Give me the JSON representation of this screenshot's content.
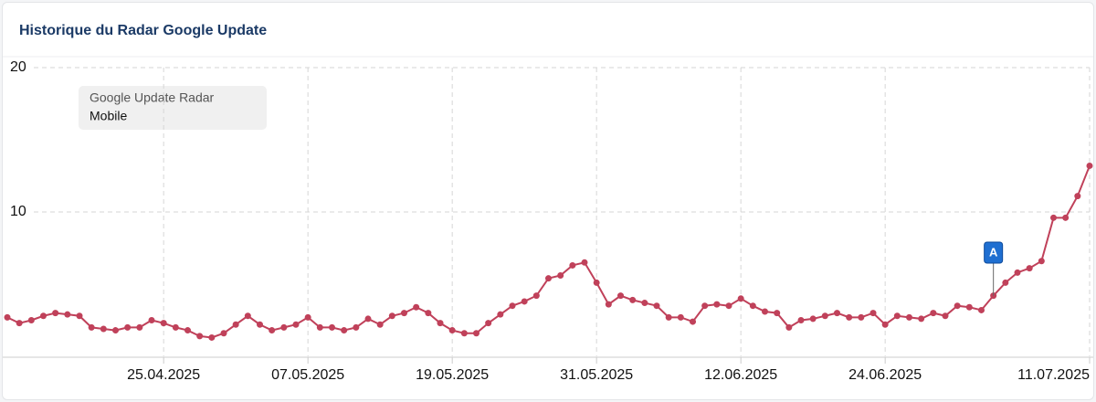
{
  "chart_data": {
    "type": "line",
    "title": "Historique du Radar Google Update",
    "legend_title": "Google Update Radar",
    "x": [
      "12.04.2025",
      "13.04.2025",
      "14.04.2025",
      "15.04.2025",
      "16.04.2025",
      "17.04.2025",
      "18.04.2025",
      "19.04.2025",
      "20.04.2025",
      "21.04.2025",
      "22.04.2025",
      "23.04.2025",
      "24.04.2025",
      "25.04.2025",
      "26.04.2025",
      "27.04.2025",
      "28.04.2025",
      "29.04.2025",
      "30.04.2025",
      "01.05.2025",
      "02.05.2025",
      "03.05.2025",
      "04.05.2025",
      "05.05.2025",
      "06.05.2025",
      "07.05.2025",
      "08.05.2025",
      "09.05.2025",
      "10.05.2025",
      "11.05.2025",
      "12.05.2025",
      "13.05.2025",
      "14.05.2025",
      "15.05.2025",
      "16.05.2025",
      "17.05.2025",
      "18.05.2025",
      "19.05.2025",
      "20.05.2025",
      "21.05.2025",
      "22.05.2025",
      "23.05.2025",
      "24.05.2025",
      "25.05.2025",
      "26.05.2025",
      "27.05.2025",
      "28.05.2025",
      "29.05.2025",
      "30.05.2025",
      "31.05.2025",
      "01.06.2025",
      "02.06.2025",
      "03.06.2025",
      "04.06.2025",
      "05.06.2025",
      "06.06.2025",
      "07.06.2025",
      "08.06.2025",
      "09.06.2025",
      "10.06.2025",
      "11.06.2025",
      "12.06.2025",
      "13.06.2025",
      "14.06.2025",
      "15.06.2025",
      "16.06.2025",
      "17.06.2025",
      "18.06.2025",
      "19.06.2025",
      "20.06.2025",
      "21.06.2025",
      "22.06.2025",
      "23.06.2025",
      "24.06.2025",
      "25.06.2025",
      "26.06.2025",
      "27.06.2025",
      "28.06.2025",
      "29.06.2025",
      "30.06.2025",
      "01.07.2025",
      "02.07.2025",
      "03.07.2025",
      "04.07.2025",
      "05.07.2025",
      "06.07.2025",
      "07.07.2025",
      "08.07.2025",
      "09.07.2025",
      "10.07.2025",
      "11.07.2025"
    ],
    "series": [
      {
        "name": "Mobile",
        "color": "#c0415a",
        "values": [
          2.7,
          2.3,
          2.5,
          2.8,
          3.0,
          2.9,
          2.8,
          2.0,
          1.9,
          1.8,
          2.0,
          2.0,
          2.5,
          2.3,
          2.0,
          1.8,
          1.4,
          1.3,
          1.6,
          2.2,
          2.8,
          2.2,
          1.8,
          2.0,
          2.2,
          2.7,
          2.0,
          2.0,
          1.8,
          2.0,
          2.6,
          2.2,
          2.8,
          3.0,
          3.4,
          3.0,
          2.3,
          1.8,
          1.6,
          1.6,
          2.3,
          2.9,
          3.5,
          3.8,
          4.2,
          5.4,
          5.6,
          6.3,
          6.5,
          5.1,
          3.6,
          4.2,
          3.9,
          3.7,
          3.5,
          2.7,
          2.7,
          2.4,
          3.5,
          3.6,
          3.5,
          4.0,
          3.5,
          3.1,
          3.0,
          2.0,
          2.5,
          2.6,
          2.8,
          3.0,
          2.7,
          2.7,
          3.0,
          2.2,
          2.8,
          2.7,
          2.6,
          3.0,
          2.8,
          3.5,
          3.4,
          3.2,
          4.2,
          5.1,
          5.8,
          6.1,
          6.6,
          9.6,
          9.6,
          11.1,
          13.2
        ]
      }
    ],
    "xticks": [
      "25.04.2025",
      "07.05.2025",
      "19.05.2025",
      "31.05.2025",
      "12.06.2025",
      "24.06.2025",
      "11.07.2025"
    ],
    "ylim": [
      0,
      20
    ],
    "yticks": [
      10,
      20
    ],
    "grid": true,
    "annotations": [
      {
        "label": "A",
        "x": "03.07.2025"
      }
    ]
  }
}
